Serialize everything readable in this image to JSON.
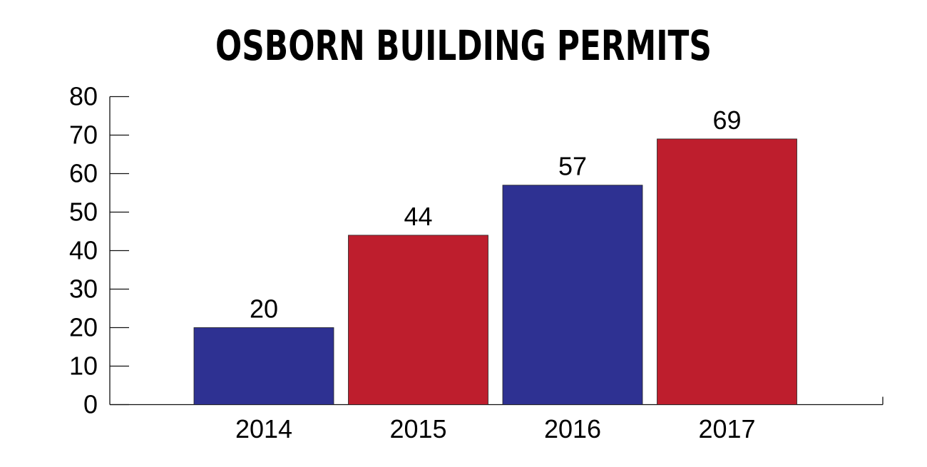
{
  "chart_data": {
    "type": "bar",
    "title": "OSBORN BUILDING PERMITS",
    "xlabel": "",
    "ylabel": "",
    "categories": [
      "2014",
      "2015",
      "2016",
      "2017"
    ],
    "values": [
      20,
      44,
      57,
      69
    ],
    "data_labels": [
      "20",
      "44",
      "57",
      "69"
    ],
    "ylim": [
      0,
      80
    ],
    "yticks": [
      "0",
      "10",
      "20",
      "30",
      "40",
      "50",
      "60",
      "70",
      "80"
    ],
    "grid": false,
    "legend": "none",
    "bar_colors": [
      "#2e3192",
      "#be1e2d",
      "#2e3192",
      "#be1e2d"
    ]
  }
}
